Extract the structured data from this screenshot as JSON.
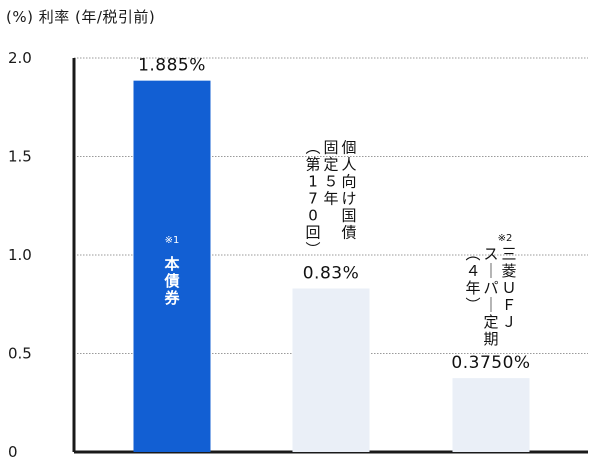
{
  "chart_data": {
    "type": "bar",
    "unit_label": "(%) 利率 (年/税引前)",
    "ylim": [
      0,
      2.0
    ],
    "y_ticks": [
      "0",
      "0.5",
      "1.0",
      "1.5",
      "2.0"
    ],
    "grid": true,
    "categories": [
      {
        "note": "※1",
        "label": "本債券",
        "value": 1.885,
        "value_label": "1.885%",
        "color": "#125fd3",
        "label_inside": true
      },
      {
        "note": "",
        "label": "個人向け国債固定５年（第170回）",
        "label_columns": [
          "個人向け国債",
          "固定５年",
          "（第170回）"
        ],
        "value": 0.83,
        "value_label": "0.83%",
        "color": "#eaeff7",
        "label_inside": false
      },
      {
        "note": "※2",
        "label": "三菱ＵＦＪスーパー定期（４年）",
        "label_columns": [
          "三菱ＵＦＪ",
          "スーパー定期",
          "（４年）"
        ],
        "value": 0.375,
        "value_label": "0.3750%",
        "color": "#eaeff7",
        "label_inside": false
      }
    ]
  },
  "colors": {
    "axis": "#1a1a1a",
    "grid": "#9a9a9a"
  }
}
